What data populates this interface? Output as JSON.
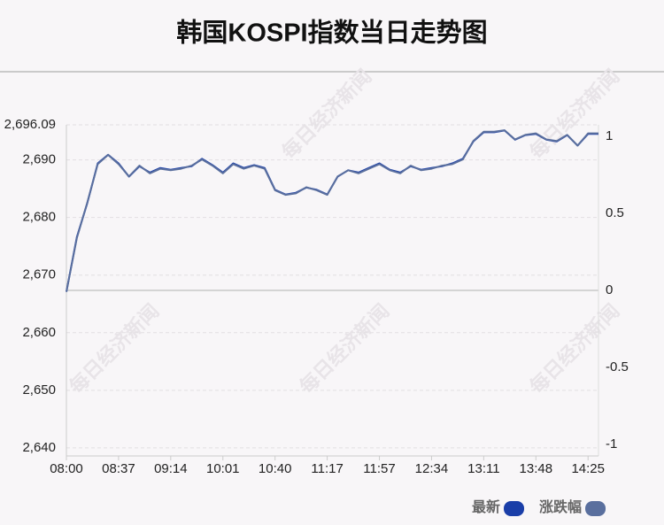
{
  "chart_data": {
    "type": "line",
    "title": "韩国KOSPI指数当日走势图",
    "watermark": "每日经济新闻",
    "categories": [
      "08:00",
      null,
      null,
      null,
      null,
      "08:37",
      null,
      null,
      null,
      null,
      "09:14",
      null,
      null,
      null,
      null,
      "10:01",
      null,
      null,
      null,
      null,
      "10:40",
      null,
      null,
      null,
      null,
      "11:17",
      null,
      null,
      null,
      null,
      "11:57",
      null,
      null,
      null,
      null,
      "12:34",
      null,
      null,
      null,
      null,
      "13:11",
      null,
      null,
      null,
      null,
      "13:48",
      null,
      null,
      null,
      null,
      "14:25",
      null
    ],
    "series": [
      {
        "name": "最新",
        "color": "#1a3ea8",
        "values": [
          2667.1,
          2676.6,
          2682.5,
          2689.4,
          2690.9,
          2689.4,
          2687.1,
          2688.9,
          2687.8,
          2688.6,
          2688.3,
          2688.6,
          2688.9,
          2690.2,
          2689.1,
          2687.8,
          2689.4,
          2688.6,
          2689.1,
          2688.6,
          2684.8,
          2684.0,
          2684.3,
          2685.2,
          2684.8,
          2684.0,
          2687.1,
          2688.2,
          2687.8,
          2688.6,
          2689.4,
          2688.3,
          2687.8,
          2688.9,
          2688.3,
          2688.6,
          2688.9,
          2689.4,
          2690.2,
          2693.2,
          2694.8,
          2694.8,
          2695.1,
          2693.5,
          2694.3,
          2694.5,
          2693.5,
          2693.2,
          2694.3,
          2692.5,
          2694.5,
          2694.5
        ]
      },
      {
        "name": "涨跌幅",
        "color": "#5a6f9e",
        "axis": "y2",
        "values": [
          -0.01,
          0.34,
          0.57,
          0.82,
          0.88,
          0.82,
          0.74,
          0.81,
          0.76,
          0.79,
          0.78,
          0.79,
          0.81,
          0.85,
          0.81,
          0.76,
          0.82,
          0.79,
          0.81,
          0.79,
          0.65,
          0.62,
          0.63,
          0.67,
          0.65,
          0.62,
          0.74,
          0.78,
          0.76,
          0.79,
          0.82,
          0.78,
          0.76,
          0.81,
          0.78,
          0.79,
          0.81,
          0.82,
          0.85,
          0.97,
          1.03,
          1.03,
          1.04,
          0.98,
          1.01,
          1.02,
          0.98,
          0.97,
          1.01,
          0.94,
          1.02,
          1.02
        ]
      }
    ],
    "ylim": [
      2638.6,
      2696.09
    ],
    "yticks": [
      {
        "value": 2696.09,
        "label": "2,696.09"
      },
      {
        "value": 2690,
        "label": "2,690"
      },
      {
        "value": 2680,
        "label": "2,680"
      },
      {
        "value": 2670,
        "label": "2,670"
      },
      {
        "value": 2660,
        "label": "2,660"
      },
      {
        "value": 2650,
        "label": "2,650"
      },
      {
        "value": 2640,
        "label": "2,640"
      }
    ],
    "y2lim": [
      -1.075,
      1.075
    ],
    "y2ticks": [
      1,
      0.5,
      0,
      -0.5,
      -1
    ],
    "grid": true,
    "legend": "bottom-right"
  }
}
